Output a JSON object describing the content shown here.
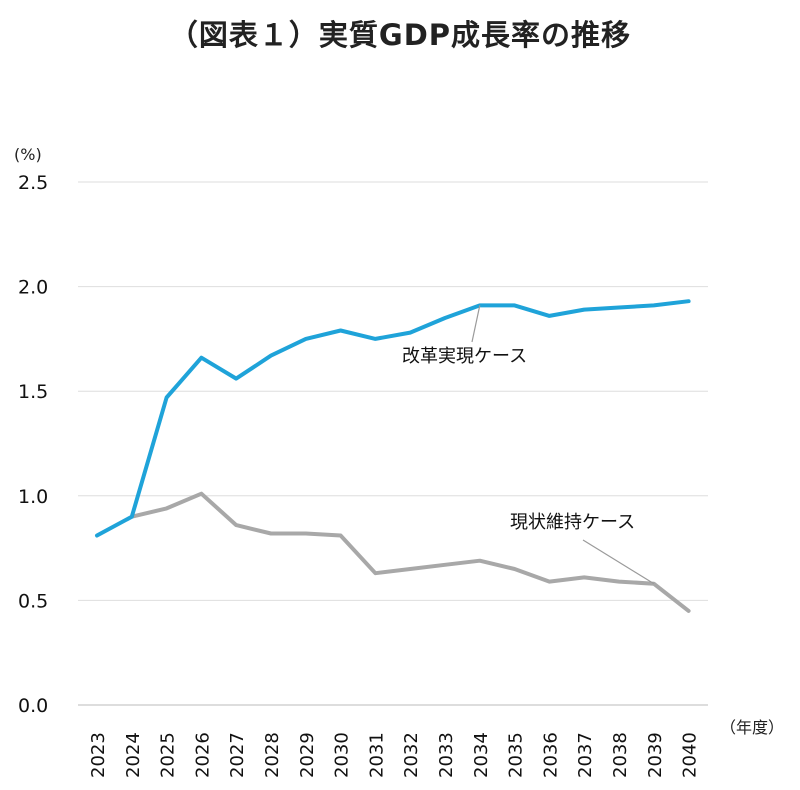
{
  "chart_data": {
    "type": "line",
    "title": "（図表１）実質GDP成長率の推移",
    "ylabel": "(%)",
    "xlabel": "（年度）",
    "ylim": [
      0,
      2.5
    ],
    "yticks": [
      "0.0",
      "0.5",
      "1.0",
      "1.5",
      "2.0",
      "2.5"
    ],
    "x": [
      "2023",
      "2024",
      "2025",
      "2026",
      "2027",
      "2028",
      "2029",
      "2030",
      "2031",
      "2032",
      "2033",
      "2034",
      "2035",
      "2036",
      "2037",
      "2038",
      "2039",
      "2040"
    ],
    "grid": "horizontal",
    "series": [
      {
        "name": "改革実現ケース",
        "color": "#1fa3d9",
        "values": [
          0.81,
          0.9,
          1.47,
          1.66,
          1.56,
          1.67,
          1.75,
          1.79,
          1.75,
          1.78,
          1.85,
          1.91,
          1.91,
          1.86,
          1.89,
          1.9,
          1.91,
          1.93
        ]
      },
      {
        "name": "現状維持ケース",
        "color": "#a8a8a8",
        "values": [
          null,
          0.9,
          0.94,
          1.01,
          0.86,
          0.82,
          0.82,
          0.81,
          0.63,
          0.65,
          0.67,
          0.69,
          0.65,
          0.59,
          0.61,
          0.59,
          0.58,
          0.45
        ]
      }
    ],
    "annotations": [
      {
        "text": "改革実現ケース",
        "series": 0,
        "point_index": 11
      },
      {
        "text": "現状維持ケース",
        "series": 1,
        "point_index": 16
      }
    ]
  }
}
